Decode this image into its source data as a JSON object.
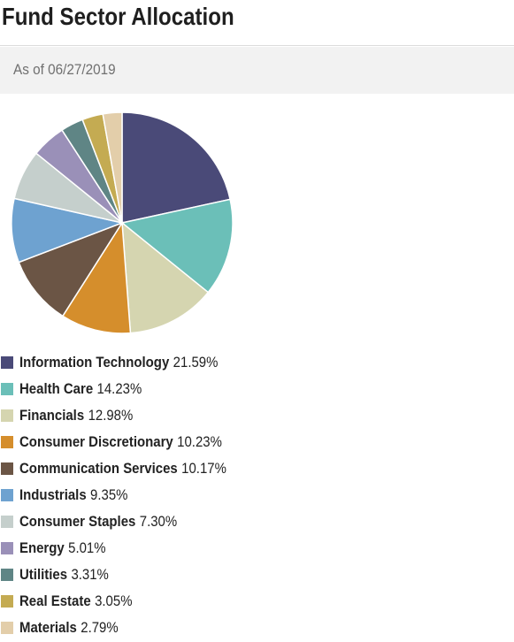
{
  "page": {
    "title": "Fund Sector Allocation",
    "as_of": "As of 06/27/2019"
  },
  "chart_data": {
    "type": "pie",
    "title": "",
    "categories": [
      "Information Technology",
      "Health Care",
      "Financials",
      "Consumer Discretionary",
      "Communication Services",
      "Industrials",
      "Consumer Staples",
      "Energy",
      "Utilities",
      "Real Estate",
      "Materials"
    ],
    "values": [
      21.59,
      14.23,
      12.98,
      10.23,
      10.17,
      9.35,
      7.3,
      5.01,
      3.31,
      3.05,
      2.79
    ],
    "value_labels": [
      "21.59%",
      "14.23%",
      "12.98%",
      "10.23%",
      "10.17%",
      "9.35%",
      "7.30%",
      "5.01%",
      "3.31%",
      "3.05%",
      "2.79%"
    ],
    "colors": [
      "#4a4a78",
      "#6bbfb8",
      "#d5d5b0",
      "#d58e2c",
      "#6b5545",
      "#6ea2d0",
      "#c5cfcc",
      "#9a90b8",
      "#5f8585",
      "#c4ab52",
      "#e3ceaa"
    ],
    "legend_placement": "bottom"
  }
}
